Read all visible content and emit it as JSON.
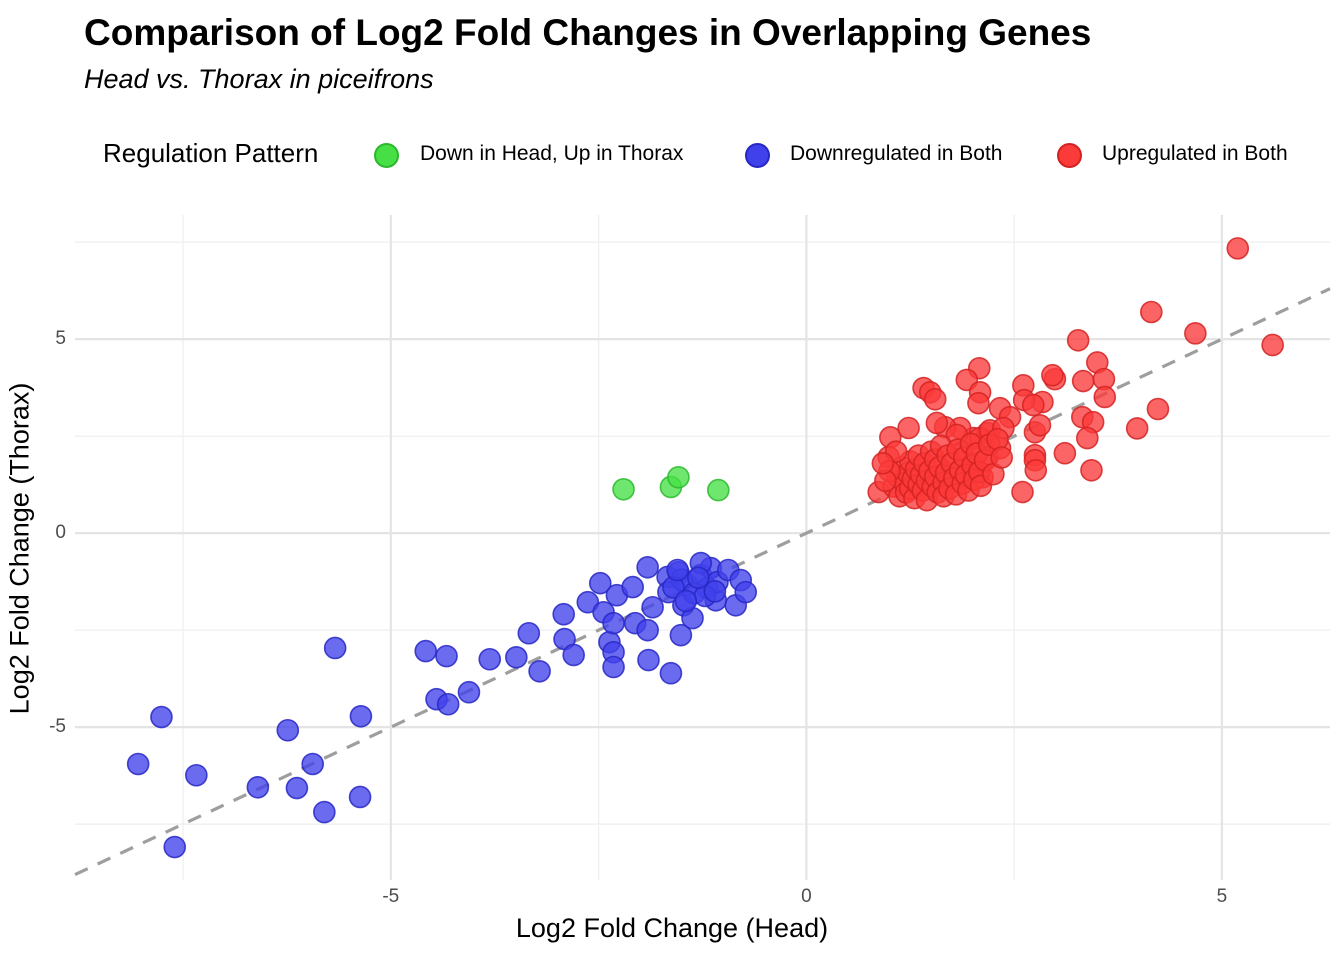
{
  "title": "Comparison of Log2 Fold Changes in Overlapping Genes",
  "subtitle": "Head vs. Thorax in piceifrons",
  "legend": {
    "title": "Regulation Pattern",
    "items": [
      {
        "label": "Down in Head, Up in Thorax",
        "color": "#46e046",
        "stroke": "#2cb82c"
      },
      {
        "label": "Downregulated in Both",
        "color": "#4141ec",
        "stroke": "#2727c4"
      },
      {
        "label": "Upregulated in Both",
        "color": "#fb3a3a",
        "stroke": "#d42222"
      }
    ]
  },
  "axes": {
    "xlabel": "Log2 Fold Change (Head)",
    "ylabel": "Log2 Fold Change (Thorax)",
    "x_tick_labels": [
      "-5",
      "0",
      "5"
    ],
    "y_tick_labels": [
      "5",
      "0",
      "-5"
    ]
  },
  "chart_data": {
    "type": "scatter",
    "title": "Comparison of Log2 Fold Changes in Overlapping Genes",
    "subtitle": "Head vs. Thorax in piceifrons",
    "xlabel": "Log2 Fold Change (Head)",
    "ylabel": "Log2 Fold Change (Thorax)",
    "xlim": [
      -8.8,
      6.3
    ],
    "ylim": [
      -8.94,
      8.2
    ],
    "x_ticks": [
      -5,
      0,
      5
    ],
    "y_ticks": [
      -5,
      0,
      5
    ],
    "x_minor_ticks": [
      -7.5,
      -2.5,
      2.5
    ],
    "y_minor_ticks": [
      -7.5,
      -2.5,
      2.5,
      7.5
    ],
    "grid": true,
    "legend_position": "top",
    "identity_line": {
      "type": "y=x",
      "style": "dashed",
      "color": "#9e9e9e"
    },
    "series": [
      {
        "name": "Down in Head, Up in Thorax",
        "color": "#46e046",
        "stroke": "#2cb82c",
        "points": [
          [
            -2.2,
            1.13
          ],
          [
            -1.63,
            1.19
          ],
          [
            -1.54,
            1.44
          ],
          [
            -1.06,
            1.11
          ]
        ]
      },
      {
        "name": "Downregulated in Both",
        "color": "#4141ec",
        "stroke": "#2727c4",
        "points": [
          [
            -8.04,
            -5.95
          ],
          [
            -7.76,
            -4.74
          ],
          [
            -7.6,
            -8.09
          ],
          [
            -7.34,
            -6.24
          ],
          [
            -6.6,
            -6.55
          ],
          [
            -6.24,
            -5.08
          ],
          [
            -6.13,
            -6.57
          ],
          [
            -5.94,
            -5.95
          ],
          [
            -5.8,
            -7.19
          ],
          [
            -5.67,
            -2.96
          ],
          [
            -5.37,
            -6.8
          ],
          [
            -5.36,
            -4.72
          ],
          [
            -4.58,
            -3.04
          ],
          [
            -4.45,
            -4.28
          ],
          [
            -4.33,
            -3.17
          ],
          [
            -4.31,
            -4.41
          ],
          [
            -4.06,
            -4.1
          ],
          [
            -3.81,
            -3.25
          ],
          [
            -3.49,
            -3.2
          ],
          [
            -3.34,
            -2.58
          ],
          [
            -3.21,
            -3.56
          ],
          [
            -2.92,
            -2.09
          ],
          [
            -2.91,
            -2.73
          ],
          [
            -2.8,
            -3.14
          ],
          [
            -2.63,
            -1.78
          ],
          [
            -2.48,
            -1.29
          ],
          [
            -2.44,
            -2.04
          ],
          [
            -2.37,
            -2.81
          ],
          [
            -2.32,
            -2.32
          ],
          [
            -2.32,
            -3.07
          ],
          [
            -2.32,
            -3.45
          ],
          [
            -2.28,
            -1.6
          ],
          [
            -2.09,
            -1.39
          ],
          [
            -2.06,
            -2.32
          ],
          [
            -1.91,
            -0.88
          ],
          [
            -1.91,
            -2.5
          ],
          [
            -1.9,
            -3.27
          ],
          [
            -1.85,
            -1.91
          ],
          [
            -1.67,
            -1.13
          ],
          [
            -1.66,
            -1.52
          ],
          [
            -1.63,
            -3.61
          ],
          [
            -1.54,
            -1.01
          ],
          [
            -1.51,
            -2.63
          ],
          [
            -1.48,
            -1.86
          ],
          [
            -1.43,
            -1.34
          ],
          [
            -1.37,
            -2.19
          ],
          [
            -1.27,
            -1.08
          ],
          [
            -1.19,
            -1.42
          ],
          [
            -1.15,
            -0.9
          ],
          [
            -1.09,
            -1.73
          ],
          [
            -1.07,
            -1.26
          ],
          [
            -1.27,
            -0.77
          ],
          [
            -0.94,
            -0.95
          ],
          [
            -0.85,
            -1.86
          ],
          [
            -0.79,
            -1.21
          ],
          [
            -0.73,
            -1.52
          ],
          [
            -1.5,
            -1.2
          ],
          [
            -1.35,
            -1.55
          ],
          [
            -1.6,
            -1.4
          ],
          [
            -1.22,
            -1.62
          ],
          [
            -1.45,
            -1.75
          ],
          [
            -1.1,
            -1.5
          ],
          [
            -1.3,
            -1.15
          ],
          [
            -1.55,
            -0.95
          ]
        ]
      },
      {
        "name": "Upregulated in Both",
        "color": "#fb3a3a",
        "stroke": "#d42222",
        "points": [
          [
            5.19,
            7.34
          ],
          [
            4.15,
            5.7
          ],
          [
            4.68,
            5.15
          ],
          [
            5.61,
            4.85
          ],
          [
            3.27,
            4.97
          ],
          [
            3.5,
            4.4
          ],
          [
            2.99,
            3.97
          ],
          [
            3.33,
            3.92
          ],
          [
            3.58,
            3.97
          ],
          [
            3.59,
            3.51
          ],
          [
            4.23,
            3.2
          ],
          [
            3.98,
            2.7
          ],
          [
            3.32,
            2.99
          ],
          [
            3.45,
            2.86
          ],
          [
            3.43,
            1.62
          ],
          [
            2.6,
            1.06
          ],
          [
            3.38,
            2.45
          ],
          [
            3.11,
            2.06
          ],
          [
            2.96,
            4.07
          ],
          [
            2.08,
            4.25
          ],
          [
            1.93,
            3.95
          ],
          [
            2.09,
            3.63
          ],
          [
            2.07,
            3.35
          ],
          [
            1.41,
            3.74
          ],
          [
            1.49,
            3.63
          ],
          [
            1.55,
            3.45
          ],
          [
            2.61,
            3.81
          ],
          [
            2.84,
            3.38
          ],
          [
            2.62,
            3.43
          ],
          [
            2.73,
            3.3
          ],
          [
            2.33,
            3.22
          ],
          [
            2.45,
            2.99
          ],
          [
            1.01,
            2.47
          ],
          [
            1.23,
            2.71
          ],
          [
            0.99,
            1.96
          ],
          [
            2.01,
            2.45
          ],
          [
            2.18,
            2.58
          ],
          [
            1.85,
            2.71
          ],
          [
            1.67,
            2.73
          ],
          [
            1.57,
            2.84
          ],
          [
            1.81,
            2.53
          ],
          [
            1.88,
            2.09
          ],
          [
            2.09,
            2.45
          ],
          [
            2.21,
            2.65
          ],
          [
            2.37,
            2.71
          ],
          [
            2.75,
            2.6
          ],
          [
            2.81,
            2.78
          ],
          [
            2.75,
            2.01
          ],
          [
            2.75,
            1.88
          ],
          [
            2.12,
            1.44
          ],
          [
            2.0,
            1.57
          ],
          [
            1.89,
            1.42
          ],
          [
            2.18,
            1.96
          ],
          [
            2.33,
            2.19
          ],
          [
            0.87,
            1.06
          ],
          [
            2.76,
            1.62
          ],
          [
            1.05,
            1.2
          ],
          [
            1.1,
            1.45
          ],
          [
            1.12,
            0.95
          ],
          [
            1.15,
            1.7
          ],
          [
            1.18,
            1.3
          ],
          [
            1.2,
            1.05
          ],
          [
            1.22,
            1.55
          ],
          [
            1.25,
            1.85
          ],
          [
            1.25,
            1.15
          ],
          [
            1.28,
            1.4
          ],
          [
            1.3,
            0.9
          ],
          [
            1.32,
            1.65
          ],
          [
            1.35,
            1.25
          ],
          [
            1.35,
            2.0
          ],
          [
            1.38,
            1.5
          ],
          [
            1.4,
            1.1
          ],
          [
            1.42,
            1.8
          ],
          [
            1.45,
            1.35
          ],
          [
            1.45,
            0.85
          ],
          [
            1.48,
            1.6
          ],
          [
            1.5,
            2.1
          ],
          [
            1.52,
            1.2
          ],
          [
            1.55,
            1.9
          ],
          [
            1.55,
            1.45
          ],
          [
            1.58,
            1.05
          ],
          [
            1.6,
            1.7
          ],
          [
            1.62,
            2.25
          ],
          [
            1.65,
            1.3
          ],
          [
            1.65,
            0.95
          ],
          [
            1.68,
            1.55
          ],
          [
            1.7,
            2.0
          ],
          [
            1.72,
            1.15
          ],
          [
            1.75,
            1.8
          ],
          [
            1.78,
            1.42
          ],
          [
            1.8,
            1.0
          ],
          [
            1.82,
            2.15
          ],
          [
            1.85,
            1.62
          ],
          [
            1.88,
            1.28
          ],
          [
            1.9,
            1.95
          ],
          [
            1.92,
            1.5
          ],
          [
            1.95,
            1.1
          ],
          [
            1.98,
            2.3
          ],
          [
            2.0,
            1.75
          ],
          [
            2.02,
            1.38
          ],
          [
            2.05,
            2.05
          ],
          [
            2.08,
            1.58
          ],
          [
            2.1,
            1.22
          ],
          [
            2.15,
            1.88
          ],
          [
            2.2,
            2.28
          ],
          [
            2.25,
            1.52
          ],
          [
            2.3,
            2.42
          ],
          [
            2.35,
            1.95
          ],
          [
            1.0,
            1.6
          ],
          [
            0.95,
            1.35
          ],
          [
            1.08,
            2.1
          ],
          [
            0.92,
            1.8
          ]
        ]
      }
    ]
  }
}
